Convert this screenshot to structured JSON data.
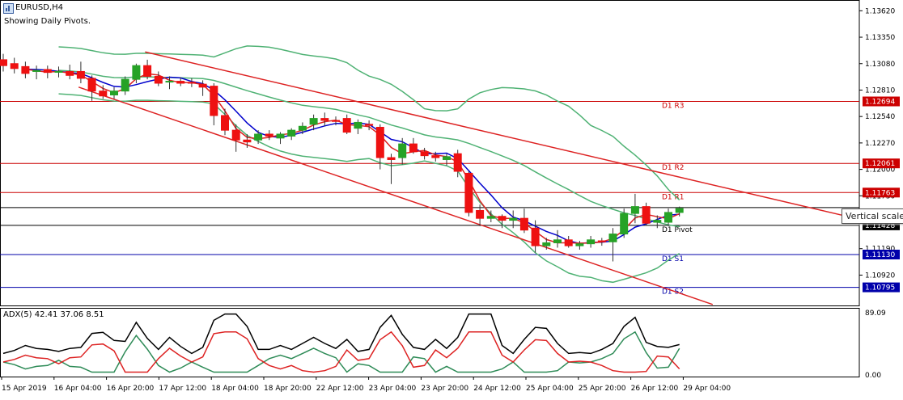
{
  "header": {
    "symbol": "EURUSD,H4",
    "subtitle": "Showing Daily Pivots.",
    "adx_label": "ADX(5) 42.41 37.06 8.51"
  },
  "tooltip": "Vertical scale",
  "colors": {
    "bull": "#26a226",
    "bear": "#ee1111",
    "pivot_line": "#000000",
    "resistance_line": "#cc0000",
    "support_line": "#0000aa",
    "channel": "#dd2222",
    "bollinger": "#4fb274",
    "ma_fast": "#dd2222",
    "ma_slow": "#0000cc",
    "adx_main": "#000000",
    "adx_plus": "#2e8b57",
    "adx_minus": "#dd2222"
  },
  "chart_data": {
    "type": "candlestick",
    "price_axis": {
      "ticks": [
        "1.13620",
        "1.13350",
        "1.13080",
        "1.12810",
        "1.12540",
        "1.12270",
        "1.12000",
        "1.11730",
        "1.11190",
        "1.10920"
      ],
      "range": [
        1.1061,
        1.1373
      ]
    },
    "pivot_levels": [
      {
        "name": "D1 R3",
        "value": 1.12694,
        "label": "1.12694",
        "kind": "resistance"
      },
      {
        "name": "D1 R2",
        "value": 1.12061,
        "label": "1.12061",
        "kind": "resistance"
      },
      {
        "name": "D1 R1",
        "value": 1.11763,
        "label": "1.11763",
        "kind": "resistance"
      },
      {
        "name": "D1 Pivot",
        "value": 1.11428,
        "label": "1.11428",
        "kind": "pivot"
      },
      {
        "name": "D1 S1",
        "value": 1.1113,
        "label": "1.11130",
        "kind": "support"
      },
      {
        "name": "D1 S2",
        "value": 1.10795,
        "label": "1.10795",
        "kind": "support"
      }
    ],
    "current_line": 1.1161,
    "x_labels": [
      "15 Apr 2019",
      "16 Apr 04:00",
      "16 Apr 20:00",
      "17 Apr 12:00",
      "18 Apr 04:00",
      "18 Apr 20:00",
      "22 Apr 12:00",
      "23 Apr 04:00",
      "23 Apr 20:00",
      "24 Apr 12:00",
      "25 Apr 04:00",
      "25 Apr 20:00",
      "26 Apr 12:00",
      "29 Apr 04:00"
    ],
    "candles": [
      {
        "o": 1.1312,
        "h": 1.1318,
        "l": 1.13,
        "c": 1.1306
      },
      {
        "o": 1.1308,
        "h": 1.1314,
        "l": 1.1298,
        "c": 1.1303
      },
      {
        "o": 1.1305,
        "h": 1.131,
        "l": 1.1293,
        "c": 1.1298
      },
      {
        "o": 1.13,
        "h": 1.1306,
        "l": 1.1292,
        "c": 1.1301
      },
      {
        "o": 1.1302,
        "h": 1.1306,
        "l": 1.1293,
        "c": 1.1299
      },
      {
        "o": 1.13,
        "h": 1.1305,
        "l": 1.1294,
        "c": 1.13
      },
      {
        "o": 1.13,
        "h": 1.1307,
        "l": 1.1292,
        "c": 1.1296
      },
      {
        "o": 1.13,
        "h": 1.131,
        "l": 1.1288,
        "c": 1.1293
      },
      {
        "o": 1.1293,
        "h": 1.1296,
        "l": 1.127,
        "c": 1.128
      },
      {
        "o": 1.128,
        "h": 1.1286,
        "l": 1.1272,
        "c": 1.1275
      },
      {
        "o": 1.1276,
        "h": 1.1284,
        "l": 1.1272,
        "c": 1.128
      },
      {
        "o": 1.128,
        "h": 1.1295,
        "l": 1.1276,
        "c": 1.1292
      },
      {
        "o": 1.1292,
        "h": 1.1308,
        "l": 1.1288,
        "c": 1.1306
      },
      {
        "o": 1.1306,
        "h": 1.1312,
        "l": 1.1292,
        "c": 1.1295
      },
      {
        "o": 1.1295,
        "h": 1.13,
        "l": 1.1285,
        "c": 1.1288
      },
      {
        "o": 1.129,
        "h": 1.1295,
        "l": 1.1282,
        "c": 1.129
      },
      {
        "o": 1.129,
        "h": 1.1294,
        "l": 1.1285,
        "c": 1.1288
      },
      {
        "o": 1.1289,
        "h": 1.1293,
        "l": 1.1284,
        "c": 1.1288
      },
      {
        "o": 1.1287,
        "h": 1.1291,
        "l": 1.1275,
        "c": 1.1284
      },
      {
        "o": 1.1285,
        "h": 1.1288,
        "l": 1.1245,
        "c": 1.1255
      },
      {
        "o": 1.1255,
        "h": 1.1262,
        "l": 1.1235,
        "c": 1.124
      },
      {
        "o": 1.124,
        "h": 1.1246,
        "l": 1.1218,
        "c": 1.123
      },
      {
        "o": 1.123,
        "h": 1.1236,
        "l": 1.1222,
        "c": 1.1228
      },
      {
        "o": 1.123,
        "h": 1.124,
        "l": 1.1226,
        "c": 1.1236
      },
      {
        "o": 1.1236,
        "h": 1.124,
        "l": 1.123,
        "c": 1.1234
      },
      {
        "o": 1.1232,
        "h": 1.1238,
        "l": 1.1226,
        "c": 1.1236
      },
      {
        "o": 1.1234,
        "h": 1.1242,
        "l": 1.123,
        "c": 1.124
      },
      {
        "o": 1.124,
        "h": 1.1248,
        "l": 1.1236,
        "c": 1.1244
      },
      {
        "o": 1.1246,
        "h": 1.1256,
        "l": 1.124,
        "c": 1.1252
      },
      {
        "o": 1.1252,
        "h": 1.1258,
        "l": 1.1244,
        "c": 1.125
      },
      {
        "o": 1.125,
        "h": 1.1254,
        "l": 1.1245,
        "c": 1.1249
      },
      {
        "o": 1.1252,
        "h": 1.1256,
        "l": 1.1236,
        "c": 1.1238
      },
      {
        "o": 1.1242,
        "h": 1.1251,
        "l": 1.1236,
        "c": 1.1248
      },
      {
        "o": 1.1246,
        "h": 1.125,
        "l": 1.124,
        "c": 1.1245
      },
      {
        "o": 1.1243,
        "h": 1.1246,
        "l": 1.12,
        "c": 1.1212
      },
      {
        "o": 1.1212,
        "h": 1.1216,
        "l": 1.1185,
        "c": 1.121
      },
      {
        "o": 1.1212,
        "h": 1.1232,
        "l": 1.1205,
        "c": 1.1226
      },
      {
        "o": 1.1226,
        "h": 1.1232,
        "l": 1.1216,
        "c": 1.1218
      },
      {
        "o": 1.1218,
        "h": 1.1222,
        "l": 1.121,
        "c": 1.1214
      },
      {
        "o": 1.1214,
        "h": 1.1218,
        "l": 1.1208,
        "c": 1.1212
      },
      {
        "o": 1.121,
        "h": 1.1216,
        "l": 1.1204,
        "c": 1.1213
      },
      {
        "o": 1.1216,
        "h": 1.122,
        "l": 1.1192,
        "c": 1.1198
      },
      {
        "o": 1.1196,
        "h": 1.1198,
        "l": 1.1152,
        "c": 1.1156
      },
      {
        "o": 1.1158,
        "h": 1.1164,
        "l": 1.1142,
        "c": 1.115
      },
      {
        "o": 1.115,
        "h": 1.1158,
        "l": 1.1146,
        "c": 1.1152
      },
      {
        "o": 1.1152,
        "h": 1.1154,
        "l": 1.114,
        "c": 1.1148
      },
      {
        "o": 1.1148,
        "h": 1.1158,
        "l": 1.114,
        "c": 1.115
      },
      {
        "o": 1.115,
        "h": 1.116,
        "l": 1.1135,
        "c": 1.1138
      },
      {
        "o": 1.114,
        "h": 1.1148,
        "l": 1.1115,
        "c": 1.1122
      },
      {
        "o": 1.1122,
        "h": 1.113,
        "l": 1.1118,
        "c": 1.1125
      },
      {
        "o": 1.1125,
        "h": 1.1138,
        "l": 1.112,
        "c": 1.1128
      },
      {
        "o": 1.1128,
        "h": 1.1132,
        "l": 1.112,
        "c": 1.1122
      },
      {
        "o": 1.1122,
        "h": 1.1127,
        "l": 1.1118,
        "c": 1.1124
      },
      {
        "o": 1.1124,
        "h": 1.1132,
        "l": 1.112,
        "c": 1.1128
      },
      {
        "o": 1.1127,
        "h": 1.113,
        "l": 1.1122,
        "c": 1.1126
      },
      {
        "o": 1.1126,
        "h": 1.114,
        "l": 1.1106,
        "c": 1.1134
      },
      {
        "o": 1.1134,
        "h": 1.116,
        "l": 1.113,
        "c": 1.1155
      },
      {
        "o": 1.1155,
        "h": 1.1175,
        "l": 1.1145,
        "c": 1.1162
      },
      {
        "o": 1.1162,
        "h": 1.1166,
        "l": 1.1143,
        "c": 1.1145
      },
      {
        "o": 1.1146,
        "h": 1.1153,
        "l": 1.114,
        "c": 1.1148
      },
      {
        "o": 1.1146,
        "h": 1.116,
        "l": 1.1142,
        "c": 1.1156
      },
      {
        "o": 1.1156,
        "h": 1.1162,
        "l": 1.1152,
        "c": 1.116
      }
    ],
    "adx": {
      "label": "ADX(5)",
      "main": 42.41,
      "plus_di": 37.06,
      "minus_di": 8.51,
      "axis_ticks": [
        "89.09",
        "0.00"
      ],
      "range": [
        0,
        89.09
      ]
    }
  }
}
